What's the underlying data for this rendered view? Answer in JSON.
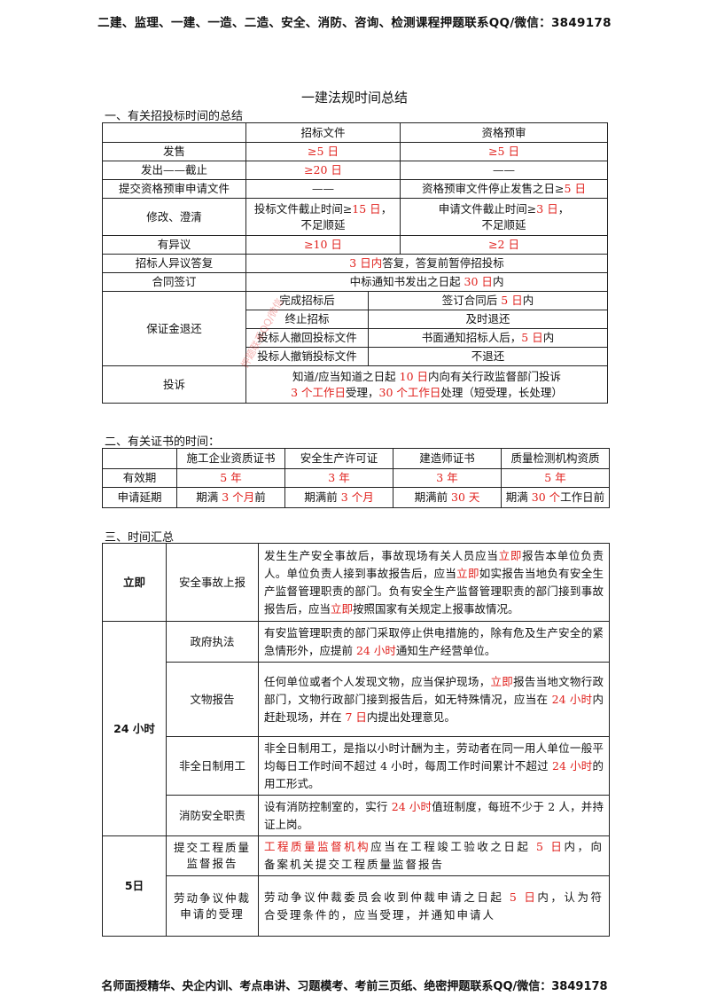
{
  "header": "二建、监理、一建、一造、二造、安全、消防、咨询、检测课程押题联系QQ/微信：3849178",
  "footer": "名师面授精华、央企内训、考点串讲、习题模考、考前三页纸、绝密押题联系QQ/微信：3849178",
  "title": "一建法规时间总结",
  "watermark": "押题联系QQ/微信",
  "section1": {
    "heading": "一、有关招投标时间的总结",
    "col_a": "招标文件",
    "col_b": "资格预审",
    "r_fashou": {
      "label": "发售",
      "a": "≥5 日",
      "b": "≥5 日"
    },
    "r_fachu": {
      "label": "发出——截止",
      "a": "≥20 日",
      "b": "——"
    },
    "r_tijiao": {
      "label": "提交资格预审申请文件",
      "a": "——",
      "b_pre": "资格预审文件停止发售之日≥",
      "b_red": "5 日"
    },
    "r_xiugai": {
      "label": "修改、澄清",
      "a_pre": "投标文件截止时间≥",
      "a_red": "15 日",
      "a_post": "，",
      "a_line2": "不足顺延",
      "b_pre": "申请文件截止时间≥",
      "b_red": "3 日",
      "b_post": "，",
      "b_line2": "不足顺延"
    },
    "r_yiyi": {
      "label": "有异议",
      "a": "≥10 日",
      "b": "≥2 日"
    },
    "r_dafu": {
      "label": "招标人异议答复",
      "red": "3 日内",
      "post": "答复，答复前暂停招投标"
    },
    "r_hetong": {
      "label": "合同签订",
      "pre": "中标通知书发出之日起 ",
      "red": "30 日",
      "post": "内"
    },
    "r_bao": {
      "label": "保证金退还",
      "c1": "完成招标后",
      "c1v_pre": "签订合同后 ",
      "c1v_red": "5 日",
      "c1v_post": "内",
      "c2": "终止招标",
      "c2v": "及时退还",
      "c3": "投标人撤回投标文件",
      "c3v_pre": "书面通知招标人后，",
      "c3v_red": "5 日",
      "c3v_post": "内",
      "c4": "投标人撤销投标文件",
      "c4v": "不退还"
    },
    "r_tousu": {
      "label": "投诉",
      "l1_pre": "知道/应当知道之日起 ",
      "l1_red": "10 日",
      "l1_post": "内向有关行政监督部门投诉",
      "l2_red1": "3 个工作日",
      "l2_mid": "受理，",
      "l2_red2": "30 个工作日",
      "l2_post": "处理（短受理，长处理）"
    }
  },
  "section2": {
    "heading": "二、有关证书的时间：",
    "cols": [
      "施工企业资质证书",
      "安全生产许可证",
      "建造师证书",
      "质量检测机构资质"
    ],
    "row1_label": "有效期",
    "row1": [
      "5 年",
      "3 年",
      "3 年",
      "5 年"
    ],
    "row2_label": "申请延期",
    "row2": [
      {
        "pre": "期满 ",
        "red": "3 个月",
        "post": "前"
      },
      {
        "pre": "期满前 ",
        "red": "3 个月",
        "post": ""
      },
      {
        "pre": "期满前 ",
        "red": "30 天",
        "post": ""
      },
      {
        "pre": "期满 ",
        "red": "30 个",
        "post": "工作日前"
      }
    ]
  },
  "section3": {
    "heading": "三、时间汇总",
    "g1": "立即",
    "g2": "24 小时",
    "g3": "5日",
    "r1": {
      "label": "安全事故上报",
      "t1": "发生生产安全事故后，事故现场有关人员应当",
      "t1r": "立即",
      "t2": "报告本单位负责人。单位负责人接到事故报告后，应当",
      "t2r": "立即",
      "t3": "如实报告当地负有安全生产监督管理职责的部门。负有安全生产监督管理职责的部门接到事故报告后，应当",
      "t3r": "立即",
      "t4": "按照国家有关规定上报事故情况。"
    },
    "r2": {
      "label": "政府执法",
      "t1": "有安监管理职责的部门采取停止供电措施的，除有危及生产安全的紧急情形外，应提前 ",
      "t1r": "24 小时",
      "t2": "通知生产经营单位。"
    },
    "r3": {
      "label": "文物报告",
      "t1": "任何单位或者个人发现文物，应当保护现场，",
      "t1r": "立即",
      "t2": "报告当地文物行政部门，文物行政部门接到报告后，如无特殊情况，应当在 ",
      "t2r": "24 小时",
      "t3": "内赶赴现场，并在 ",
      "t3r": "7 日",
      "t4": "内提出处理意见。"
    },
    "r4": {
      "label": "非全日制用工",
      "t1": "非全日制用工，是指以小时计酬为主，劳动者在同一用人单位一般平均每日工作时间不超过 4 小时，每周工作时间累计不超过 ",
      "t1r": "24 小时",
      "t2": "的用工形式。"
    },
    "r5": {
      "label": "消防安全职责",
      "t1": "设有消防控制室的，实行 ",
      "t1r": "24 小时",
      "t2": "值班制度，每班不少于 2 人，并持证上岗。"
    },
    "r6": {
      "label": "提交工程质量监督报告",
      "t1r": "工程质量监督机构",
      "t1": "应当在工程竣工验收之日起 ",
      "t2r": "5 日",
      "t2": "内，向备案机关提交工程质量监督报告"
    },
    "r7": {
      "label": "劳动争议仲裁申请的受理",
      "t1": "劳动争议仲裁委员会收到仲裁申请之日起 ",
      "t1r": "5 日",
      "t2": "内，认为符合受理条件的，应当受理，并通知申请人"
    }
  }
}
